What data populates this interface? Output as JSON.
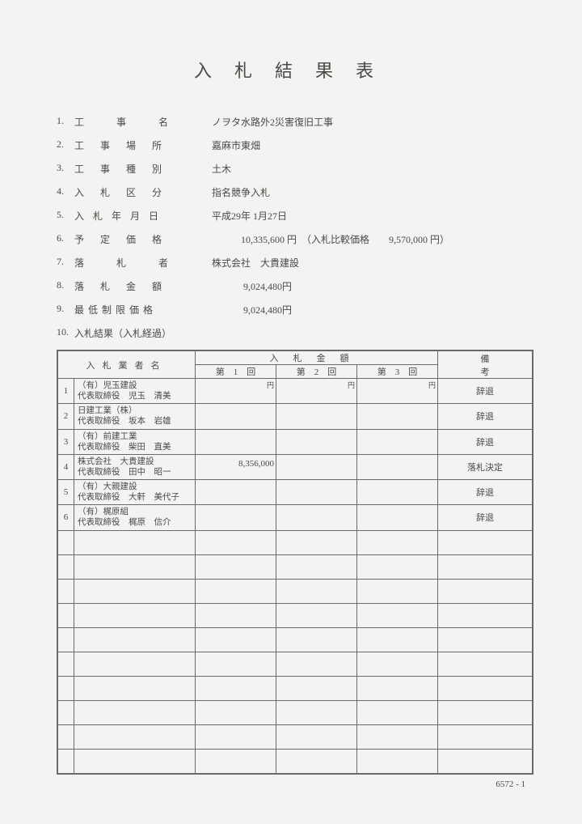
{
  "title": "入札結果表",
  "meta": [
    {
      "num": "1.",
      "label": "工事名",
      "labelClass": "sp1",
      "value": "ノヲタ水路外2災害復旧工事"
    },
    {
      "num": "2.",
      "label": "工事場所",
      "labelClass": "sp2",
      "value": "嘉麻市東畑"
    },
    {
      "num": "3.",
      "label": "工事種別",
      "labelClass": "sp2",
      "value": "土木"
    },
    {
      "num": "4.",
      "label": "入札区分",
      "labelClass": "sp2",
      "value": "指名競争入札"
    },
    {
      "num": "5.",
      "label": "入札年月日",
      "labelClass": "sp3",
      "value": "平成29年 1月27日"
    },
    {
      "num": "6.",
      "label": "予定価格",
      "labelClass": "sp2",
      "value": "　　　10,335,600 円　（入札比較価格　　9,570,000 円）"
    },
    {
      "num": "7.",
      "label": "落札者",
      "labelClass": "sp1",
      "value": "株式会社　大貴建設"
    },
    {
      "num": "8.",
      "label": "落札金額",
      "labelClass": "sp2",
      "value": "　　　 9,024,480円"
    },
    {
      "num": "9.",
      "label": "最低制限価格",
      "labelClass": "sp4",
      "value": "　　　 9,024,480円"
    },
    {
      "num": "10.",
      "label": "入札結果（入札経過）",
      "labelClass": "",
      "value": ""
    }
  ],
  "table": {
    "headers": {
      "name": "入札業者名",
      "amountGroup": "入札金額",
      "bids": [
        "第　1　回",
        "第　2　回",
        "第　3　回"
      ],
      "note": "備考",
      "yen": "円"
    },
    "rows": [
      {
        "num": "1",
        "name": "（有）児玉建設\n代表取締役　児玉　清美",
        "b1": "",
        "b2": "",
        "b3": "",
        "note": "辞退"
      },
      {
        "num": "2",
        "name": "日建工業（株）\n代表取締役　坂本　岩雄",
        "b1": "",
        "b2": "",
        "b3": "",
        "note": "辞退"
      },
      {
        "num": "3",
        "name": "（有）前建工業\n代表取締役　柴田　直美",
        "b1": "",
        "b2": "",
        "b3": "",
        "note": "辞退"
      },
      {
        "num": "4",
        "name": "株式会社　大貴建設\n代表取締役　田中　昭一",
        "b1": "8,356,000",
        "b2": "",
        "b3": "",
        "note": "落札決定"
      },
      {
        "num": "5",
        "name": "（有）大親建設\n代表取締役　大軒　美代子",
        "b1": "",
        "b2": "",
        "b3": "",
        "note": "辞退"
      },
      {
        "num": "6",
        "name": "（有）梶原組\n代表取締役　梶原　信介",
        "b1": "",
        "b2": "",
        "b3": "",
        "note": "辞退"
      },
      {
        "num": "",
        "name": "",
        "b1": "",
        "b2": "",
        "b3": "",
        "note": ""
      },
      {
        "num": "",
        "name": "",
        "b1": "",
        "b2": "",
        "b3": "",
        "note": ""
      },
      {
        "num": "",
        "name": "",
        "b1": "",
        "b2": "",
        "b3": "",
        "note": ""
      },
      {
        "num": "",
        "name": "",
        "b1": "",
        "b2": "",
        "b3": "",
        "note": ""
      },
      {
        "num": "",
        "name": "",
        "b1": "",
        "b2": "",
        "b3": "",
        "note": ""
      },
      {
        "num": "",
        "name": "",
        "b1": "",
        "b2": "",
        "b3": "",
        "note": ""
      },
      {
        "num": "",
        "name": "",
        "b1": "",
        "b2": "",
        "b3": "",
        "note": ""
      },
      {
        "num": "",
        "name": "",
        "b1": "",
        "b2": "",
        "b3": "",
        "note": ""
      },
      {
        "num": "",
        "name": "",
        "b1": "",
        "b2": "",
        "b3": "",
        "note": ""
      },
      {
        "num": "",
        "name": "",
        "b1": "",
        "b2": "",
        "b3": "",
        "note": ""
      }
    ]
  },
  "pageId": "6572 - 1"
}
